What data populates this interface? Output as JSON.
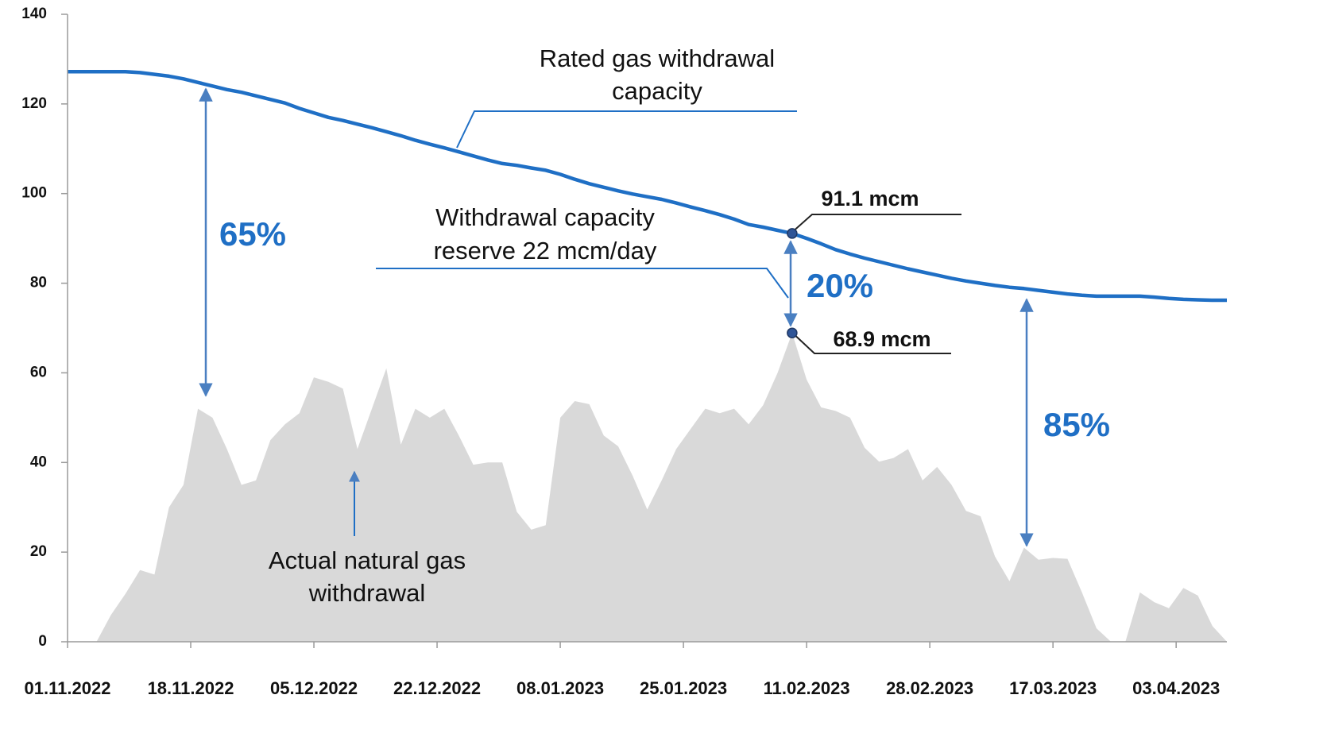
{
  "chart_data": {
    "type": "area-line",
    "x": [
      "01.11.2022",
      "03.11.2022",
      "05.11.2022",
      "07.11.2022",
      "09.11.2022",
      "11.11.2022",
      "13.11.2022",
      "15.11.2022",
      "17.11.2022",
      "19.11.2022",
      "21.11.2022",
      "23.11.2022",
      "25.11.2022",
      "27.11.2022",
      "29.11.2022",
      "01.12.2022",
      "03.12.2022",
      "05.12.2022",
      "07.12.2022",
      "09.12.2022",
      "11.12.2022",
      "13.12.2022",
      "15.12.2022",
      "17.12.2022",
      "19.12.2022",
      "21.12.2022",
      "23.12.2022",
      "25.12.2022",
      "27.12.2022",
      "29.12.2022",
      "31.12.2022",
      "02.01.2023",
      "04.01.2023",
      "06.01.2023",
      "08.01.2023",
      "10.01.2023",
      "12.01.2023",
      "14.01.2023",
      "16.01.2023",
      "18.01.2023",
      "20.01.2023",
      "22.01.2023",
      "24.01.2023",
      "26.01.2023",
      "28.01.2023",
      "30.01.2023",
      "01.02.2023",
      "03.02.2023",
      "05.02.2023",
      "07.02.2023",
      "09.02.2023",
      "11.02.2023",
      "13.02.2023",
      "15.02.2023",
      "17.02.2023",
      "19.02.2023",
      "21.02.2023",
      "23.02.2023",
      "25.02.2023",
      "27.02.2023",
      "01.03.2023",
      "03.03.2023",
      "05.03.2023",
      "07.03.2023",
      "09.03.2023",
      "11.03.2023",
      "13.03.2023",
      "15.03.2023",
      "17.03.2023",
      "19.03.2023",
      "21.03.2023",
      "23.03.2023",
      "25.03.2023",
      "27.03.2023",
      "29.03.2023",
      "31.03.2023",
      "02.04.2023",
      "04.04.2023",
      "06.04.2023",
      "08.04.2023",
      "10.04.2023"
    ],
    "series": [
      {
        "name": "Rated gas withdrawal capacity",
        "color": "#1f6fc5",
        "kind": "line",
        "values": [
          127.2,
          127.2,
          127.2,
          127.2,
          127.2,
          127,
          126.6,
          126.2,
          125.6,
          124.8,
          124,
          123.2,
          122.6,
          121.8,
          121,
          120.2,
          119,
          118,
          117,
          116.3,
          115.5,
          114.7,
          113.8,
          112.9,
          111.9,
          111,
          110.2,
          109.3,
          108.4,
          107.5,
          106.7,
          106.3,
          105.7,
          105.2,
          104.3,
          103.2,
          102.2,
          101.4,
          100.6,
          99.9,
          99.3,
          98.7,
          97.9,
          97,
          96.2,
          95.3,
          94.3,
          93.1,
          92.5,
          91.8,
          91.1,
          90,
          88.8,
          87.5,
          86.5,
          85.6,
          84.8,
          84,
          83.2,
          82.5,
          81.8,
          81.1,
          80.5,
          80,
          79.5,
          79.1,
          78.8,
          78.4,
          78,
          77.6,
          77.3,
          77.1,
          77.1,
          77.1,
          77.1,
          76.9,
          76.6,
          76.4,
          76.3,
          76.2,
          76.2
        ]
      },
      {
        "name": "Actual natural gas withdrawal",
        "color": "#d9d9d9",
        "kind": "area",
        "values": [
          0,
          0,
          0,
          6,
          10.7,
          16,
          15,
          30,
          35,
          52,
          50,
          43,
          35,
          36,
          45,
          48.5,
          51,
          59,
          58,
          56.5,
          43,
          52,
          61,
          44,
          52,
          50,
          52,
          46,
          39.5,
          40,
          40,
          29,
          25,
          26,
          50,
          53.7,
          53,
          46,
          43.6,
          37,
          29.5,
          36,
          43,
          47.5,
          52,
          51,
          52,
          48.5,
          52.8,
          60,
          68.9,
          58.5,
          52.3,
          51.5,
          50,
          43.3,
          40.2,
          41,
          43,
          36,
          39,
          35,
          29.2,
          28,
          19,
          13.5,
          21,
          18.3,
          18.7,
          18.5,
          11,
          3,
          0,
          0,
          11,
          8.8,
          7.5,
          12,
          10.3,
          3.5,
          0
        ]
      }
    ],
    "xlim": [
      "01.11.2022",
      "10.04.2023"
    ],
    "xticks": [
      "01.11.2022",
      "18.11.2022",
      "05.12.2022",
      "22.12.2022",
      "08.01.2023",
      "25.01.2023",
      "11.02.2023",
      "28.02.2023",
      "17.03.2023",
      "03.04.2023"
    ],
    "ylim": [
      0,
      140
    ],
    "yticks": [
      0,
      20,
      40,
      60,
      80,
      100,
      120,
      140
    ],
    "annotations": [
      [
        "Rated gas withdrawal",
        "capacity"
      ],
      [
        "Withdrawal capacity",
        "reserve 22 mcm/day"
      ],
      [
        "Actual natural gas",
        "withdrawal"
      ],
      [
        "65%"
      ],
      [
        "20%"
      ],
      [
        "85%"
      ],
      [
        "91.1 mcm"
      ],
      [
        "68.9 mcm"
      ]
    ]
  }
}
